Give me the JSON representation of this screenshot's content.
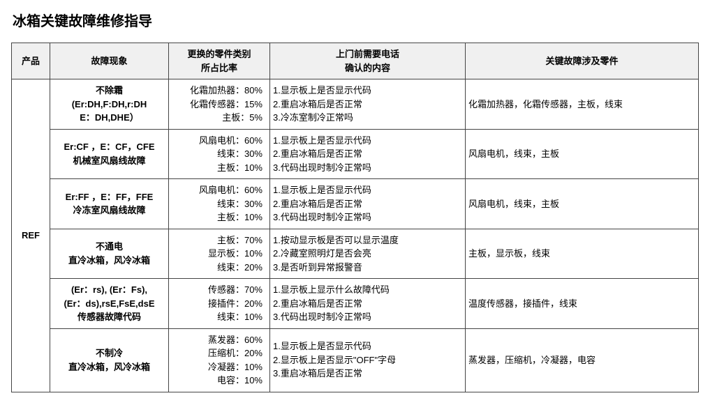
{
  "title": "冰箱关键故障维修指导",
  "headers": {
    "product": "产品",
    "symptom": "故障现象",
    "parts_ratio_l1": "更换的零件类别",
    "parts_ratio_l2": "所占比率",
    "confirm_l1": "上门前需要电话",
    "confirm_l2": "确认的内容",
    "key_parts": "关键故障涉及零件"
  },
  "product_label": "REF",
  "rows": [
    {
      "symptom_l1": "不除霜",
      "symptom_l2": "(Er:DH,F:DH,r:DH",
      "symptom_l3": "E：DH,DHE）",
      "parts": [
        "化霜加热器：80%",
        "化霜传感器：15%",
        "主板：5%"
      ],
      "confirm": [
        "1.显示板上是否显示代码",
        "2.重启冰箱后是否正常",
        "3.冷冻室制冷正常吗"
      ],
      "key": "化霜加热器，化霜传感器，主板，线束"
    },
    {
      "symptom_l1": "Er:CF ，E：CF，CFE",
      "symptom_l2": "机械室风扇线故障",
      "symptom_l3": "",
      "parts": [
        "风扇电机：60%",
        "线束：30%",
        "主板：10%"
      ],
      "confirm": [
        "1.显示板上是否显示代码",
        "2.重启冰箱后是否正常",
        "3.代码出现时制冷正常吗"
      ],
      "key": "风扇电机，线束，主板"
    },
    {
      "symptom_l1": "Er:FF ，E：FF，FFE",
      "symptom_l2": "冷冻室风扇线故障",
      "symptom_l3": "",
      "parts": [
        "风扇电机：60%",
        "线束：30%",
        "主板：10%"
      ],
      "confirm": [
        "1.显示板上是否显示代码",
        "2.重启冰箱后是否正常",
        "3.代码出现时制冷正常吗"
      ],
      "key": "风扇电机，线束，主板"
    },
    {
      "symptom_l1": "不通电",
      "symptom_l2": "直冷冰箱，风冷冰箱",
      "symptom_l3": "",
      "parts": [
        "主板：70%",
        "显示板：10%",
        "线束：20%"
      ],
      "confirm": [
        "1.按动显示板是否可以显示温度",
        "2.冷藏室照明灯是否会亮",
        "3.是否听到异常报警音"
      ],
      "key": "主板，显示板，线束"
    },
    {
      "symptom_l1": "(Er：rs), (Er：Fs),",
      "symptom_l2": "(Er：ds),rsE,FsE,dsE",
      "symptom_l3": "传感器故障代码",
      "parts": [
        "传感器：70%",
        "接插件：20%",
        "线束：10%"
      ],
      "confirm": [
        "1.显示板上显示什么故障代码",
        "2.重启冰箱后是否正常",
        "3.代码出现时制冷正常吗"
      ],
      "key": "温度传感器，接插件，线束"
    },
    {
      "symptom_l1": "不制冷",
      "symptom_l2": "直冷冰箱，风冷冰箱",
      "symptom_l3": "",
      "parts": [
        "蒸发器：60%",
        "压缩机：20%",
        "冷凝器：10%",
        "电容：10%"
      ],
      "confirm": [
        "1.显示板上是否显示代码",
        "2.显示板上是否显示\"OFF\"字母",
        "3.重启冰箱后是否正常"
      ],
      "key": "蒸发器，压缩机，冷凝器，电容"
    }
  ]
}
